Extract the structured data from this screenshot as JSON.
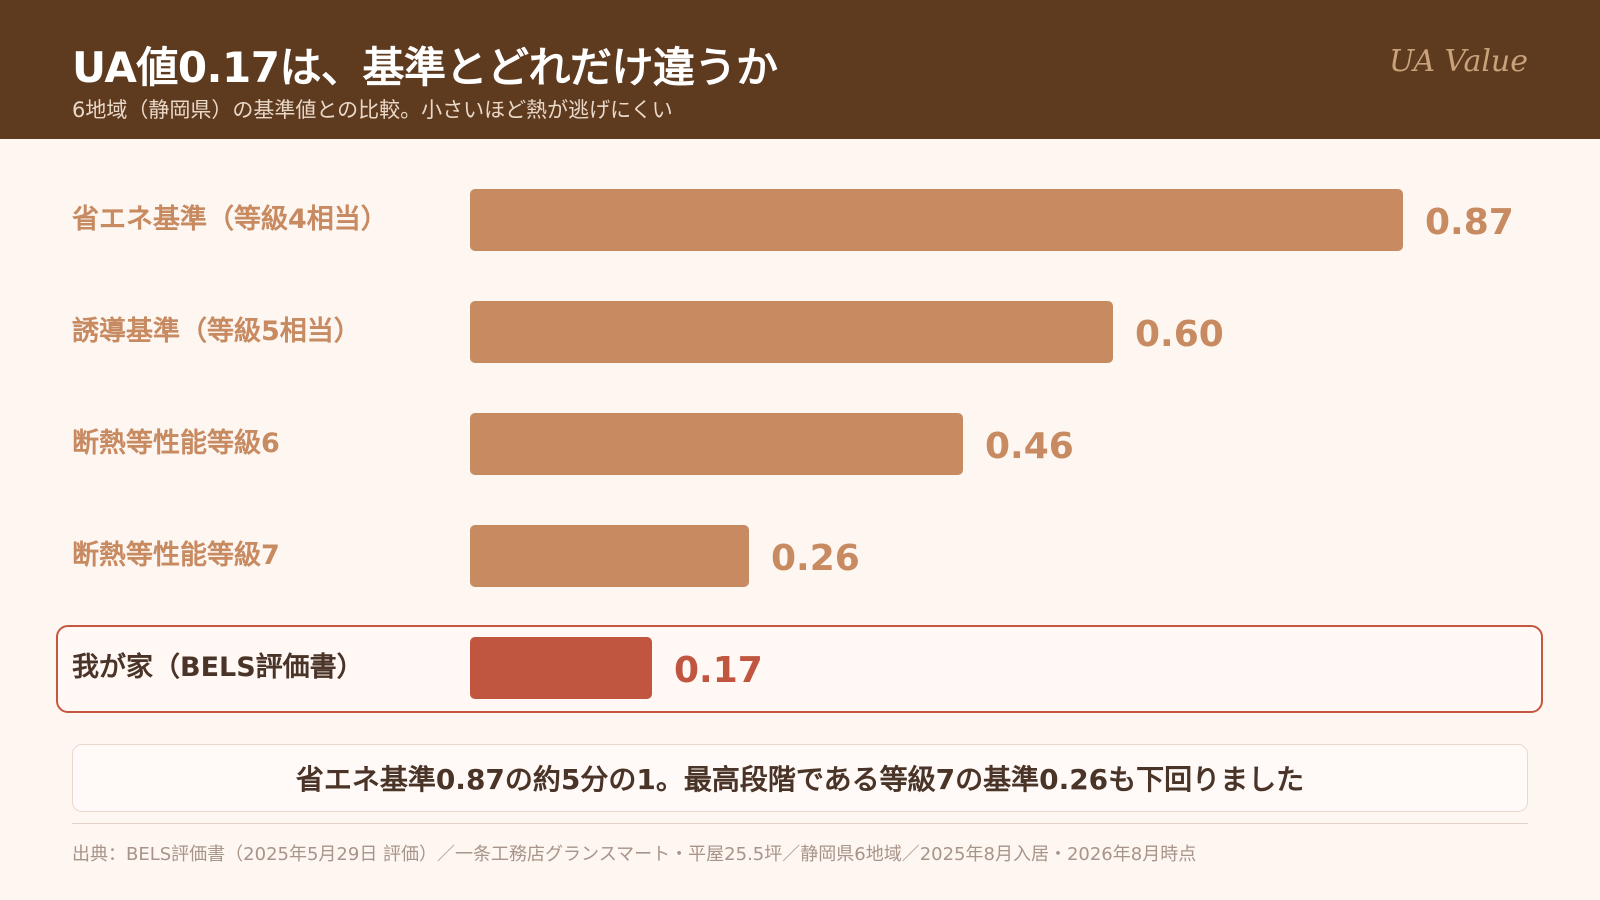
{
  "header": {
    "title": "UA値0.17は、基準とどれだけ違うか",
    "subtitle": "6地域（静岡県）の基準値との比較。小さいほど熱が逃げにくい",
    "brand": "UA Value"
  },
  "chart_data": {
    "type": "bar",
    "orientation": "horizontal",
    "categories": [
      "省エネ基準（等級4相当）",
      "誘導基準（等級5相当）",
      "断熱等性能等級6",
      "断熱等性能等級7",
      "我が家（BELS評価書）"
    ],
    "values": [
      0.87,
      0.6,
      0.46,
      0.26,
      0.17
    ],
    "value_labels": [
      "0.87",
      "0.60",
      "0.46",
      "0.26",
      "0.17"
    ],
    "highlight_index": 4,
    "colors": {
      "bar": "#c78a61",
      "highlight_bar": "#c05540",
      "label": "#c78a61",
      "highlight_label": "#4a3428"
    },
    "xlim": [
      0,
      0.87
    ],
    "grid": false
  },
  "summary": "省エネ基準0.87の約5分の1。最高段階である等級7の基準0.26も下回りました",
  "source": "出典：BELS評価書（2025年5月29日 評価）／一条工務店グランスマート・平屋25.5坪／静岡県6地域／2025年8月入居・2026年8月時点"
}
